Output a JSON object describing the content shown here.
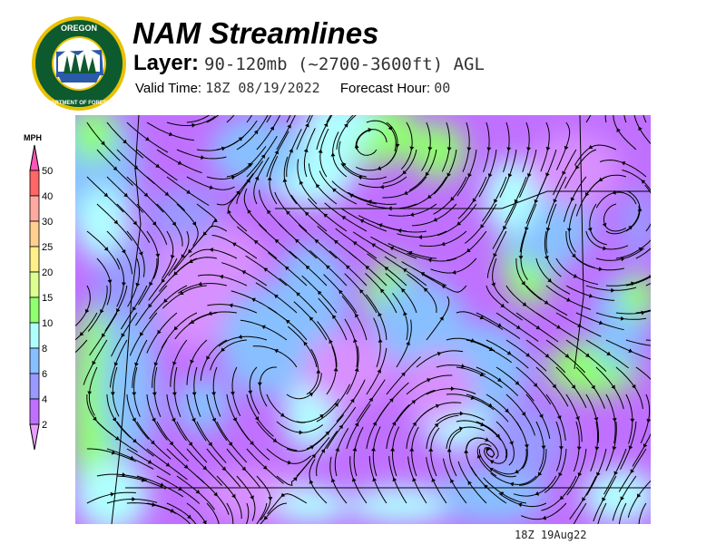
{
  "logo": {
    "top_text": "OREGON",
    "bottom_text": "DEPARTMENT OF FORESTRY",
    "colors": {
      "ring": "#e8c200",
      "fill": "#0d5a2e"
    }
  },
  "header": {
    "title": "NAM Streamlines",
    "layer_label": "Layer:",
    "layer_value": "90-120mb (~2700-3600ft) AGL",
    "valid_time_label": "Valid Time:",
    "valid_time_value": "18Z 08/19/2022",
    "forecast_hour_label": "Forecast Hour:",
    "forecast_hour_value": "00"
  },
  "legend": {
    "unit": "MPH",
    "labels": [
      "50",
      "40",
      "30",
      "25",
      "20",
      "15",
      "10",
      "8",
      "6",
      "4",
      "2"
    ],
    "colors": [
      "#ff6666",
      "#ffaaa0",
      "#ffd090",
      "#fff08a",
      "#dcff90",
      "#90ff70",
      "#b0ffff",
      "#88c0ff",
      "#9999ff",
      "#c070ff"
    ],
    "top_arrow_color": "#ff55bb",
    "bottom_arrow_color": "#e8a0ff"
  },
  "map": {
    "field_colors": {
      "purple": "#c070ff",
      "light_purple": "#d890ff",
      "violet": "#9999ff",
      "blue": "#88c0ff",
      "cyan": "#b0ffff",
      "green": "#90ff70"
    },
    "streamline_color": "#000000"
  },
  "footer": {
    "timestamp": "18Z 19Aug22"
  }
}
